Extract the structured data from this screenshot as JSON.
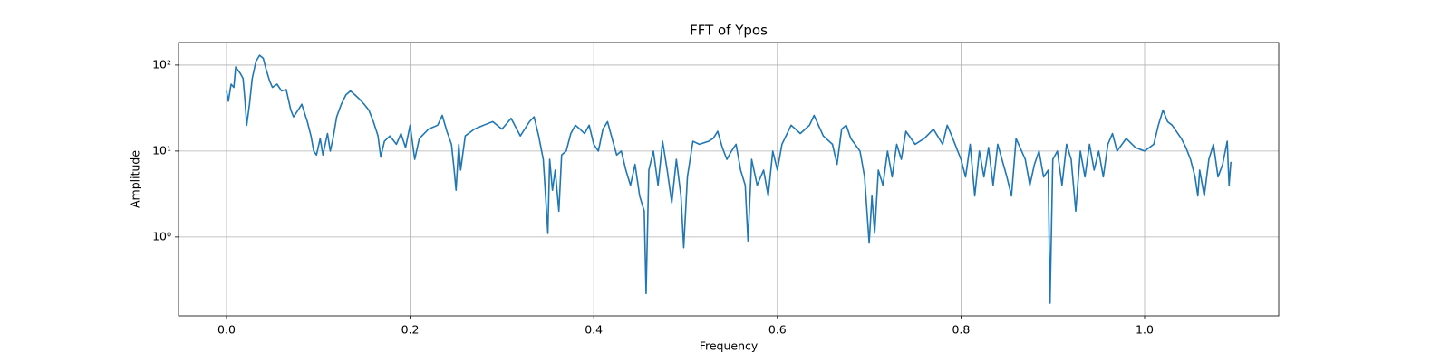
{
  "chart_data": {
    "type": "line",
    "title": "FFT of Ypos",
    "xlabel": "Frequency",
    "ylabel": "Amplitude",
    "yscale": "log",
    "grid": true,
    "color": "#1f77b4",
    "xlim": [
      -0.0523,
      1.1461
    ],
    "ylim": [
      0.121,
      183
    ],
    "xticks": [
      {
        "value": 0,
        "label": "0.0"
      },
      0.2,
      0.4,
      0.6,
      0.8,
      {
        "value": 1,
        "label": "1.0"
      }
    ],
    "yticks": [
      {
        "value": 1,
        "label": "10⁰"
      },
      {
        "value": 10,
        "label": "10¹"
      },
      {
        "value": 100,
        "label": "10²"
      }
    ],
    "x": [
      0.0,
      0.002,
      0.005,
      0.008,
      0.01,
      0.015,
      0.018,
      0.02,
      0.022,
      0.025,
      0.028,
      0.032,
      0.036,
      0.04,
      0.043,
      0.047,
      0.05,
      0.055,
      0.06,
      0.065,
      0.07,
      0.073,
      0.078,
      0.082,
      0.088,
      0.092,
      0.095,
      0.098,
      0.102,
      0.105,
      0.11,
      0.113,
      0.116,
      0.12,
      0.125,
      0.13,
      0.135,
      0.14,
      0.145,
      0.15,
      0.155,
      0.16,
      0.165,
      0.168,
      0.172,
      0.178,
      0.185,
      0.19,
      0.195,
      0.2,
      0.205,
      0.21,
      0.22,
      0.23,
      0.235,
      0.24,
      0.245,
      0.248,
      0.25,
      0.253,
      0.255,
      0.26,
      0.27,
      0.28,
      0.29,
      0.3,
      0.31,
      0.32,
      0.33,
      0.335,
      0.34,
      0.345,
      0.348,
      0.35,
      0.352,
      0.355,
      0.358,
      0.362,
      0.365,
      0.37,
      0.375,
      0.38,
      0.385,
      0.39,
      0.395,
      0.4,
      0.405,
      0.41,
      0.415,
      0.42,
      0.425,
      0.43,
      0.435,
      0.44,
      0.445,
      0.45,
      0.455,
      0.457,
      0.46,
      0.465,
      0.47,
      0.475,
      0.48,
      0.485,
      0.49,
      0.495,
      0.498,
      0.502,
      0.508,
      0.515,
      0.525,
      0.53,
      0.535,
      0.54,
      0.545,
      0.55,
      0.555,
      0.56,
      0.565,
      0.568,
      0.572,
      0.578,
      0.585,
      0.59,
      0.595,
      0.6,
      0.605,
      0.615,
      0.625,
      0.635,
      0.64,
      0.65,
      0.66,
      0.665,
      0.67,
      0.675,
      0.68,
      0.69,
      0.695,
      0.7,
      0.703,
      0.706,
      0.71,
      0.715,
      0.72,
      0.725,
      0.73,
      0.735,
      0.74,
      0.75,
      0.76,
      0.77,
      0.78,
      0.785,
      0.79,
      0.8,
      0.805,
      0.81,
      0.815,
      0.82,
      0.825,
      0.83,
      0.835,
      0.84,
      0.85,
      0.855,
      0.86,
      0.87,
      0.875,
      0.88,
      0.885,
      0.89,
      0.895,
      0.897,
      0.9,
      0.905,
      0.91,
      0.915,
      0.92,
      0.925,
      0.93,
      0.935,
      0.94,
      0.945,
      0.95,
      0.955,
      0.96,
      0.965,
      0.97,
      0.98,
      0.99,
      1.0,
      1.01,
      1.015,
      1.02,
      1.025,
      1.03,
      1.04,
      1.045,
      1.05,
      1.055,
      1.058,
      1.06,
      1.065,
      1.07,
      1.075,
      1.08,
      1.085,
      1.09,
      1.092,
      1.094
    ],
    "values": [
      50,
      38,
      60,
      55,
      95,
      80,
      70,
      40,
      20,
      35,
      70,
      110,
      130,
      120,
      90,
      65,
      55,
      60,
      50,
      52,
      30,
      25,
      30,
      35,
      22,
      15,
      10,
      9,
      14,
      9,
      16,
      10,
      14,
      25,
      35,
      45,
      50,
      45,
      40,
      35,
      30,
      22,
      15,
      8.5,
      13,
      15,
      12,
      16,
      11,
      20,
      8,
      14,
      18,
      20,
      26,
      17,
      12,
      6,
      3.5,
      12,
      6,
      15,
      18,
      20,
      22,
      18,
      24,
      15,
      22,
      25,
      15,
      8,
      2.5,
      1.1,
      8,
      3.5,
      6,
      2,
      9,
      10,
      16,
      20,
      18,
      16,
      20,
      12,
      10,
      18,
      22,
      14,
      9,
      10,
      6,
      4,
      7,
      3,
      2,
      0.22,
      6,
      10,
      4,
      13,
      6,
      2.5,
      8,
      3,
      0.75,
      5,
      13,
      12,
      13,
      14,
      17,
      11,
      8,
      10,
      12,
      6,
      4,
      0.9,
      8,
      4,
      6,
      3,
      10,
      6,
      12,
      20,
      16,
      20,
      26,
      15,
      12,
      7,
      18,
      20,
      14,
      10,
      5,
      0.85,
      3,
      1.1,
      6,
      4,
      10,
      5,
      12,
      8,
      17,
      12,
      14,
      18,
      12,
      20,
      15,
      8,
      5,
      12,
      3,
      10,
      5,
      11,
      4,
      12,
      5,
      3,
      14,
      8,
      4,
      7,
      10,
      5,
      6,
      0.17,
      8,
      10,
      4,
      12,
      8,
      2,
      10,
      5,
      12,
      6,
      10,
      5,
      12,
      16,
      10,
      14,
      11,
      10,
      12,
      20,
      30,
      22,
      20,
      14,
      11,
      8,
      5,
      3,
      6,
      3,
      8,
      12,
      5,
      7,
      13,
      4,
      7.5
    ]
  }
}
